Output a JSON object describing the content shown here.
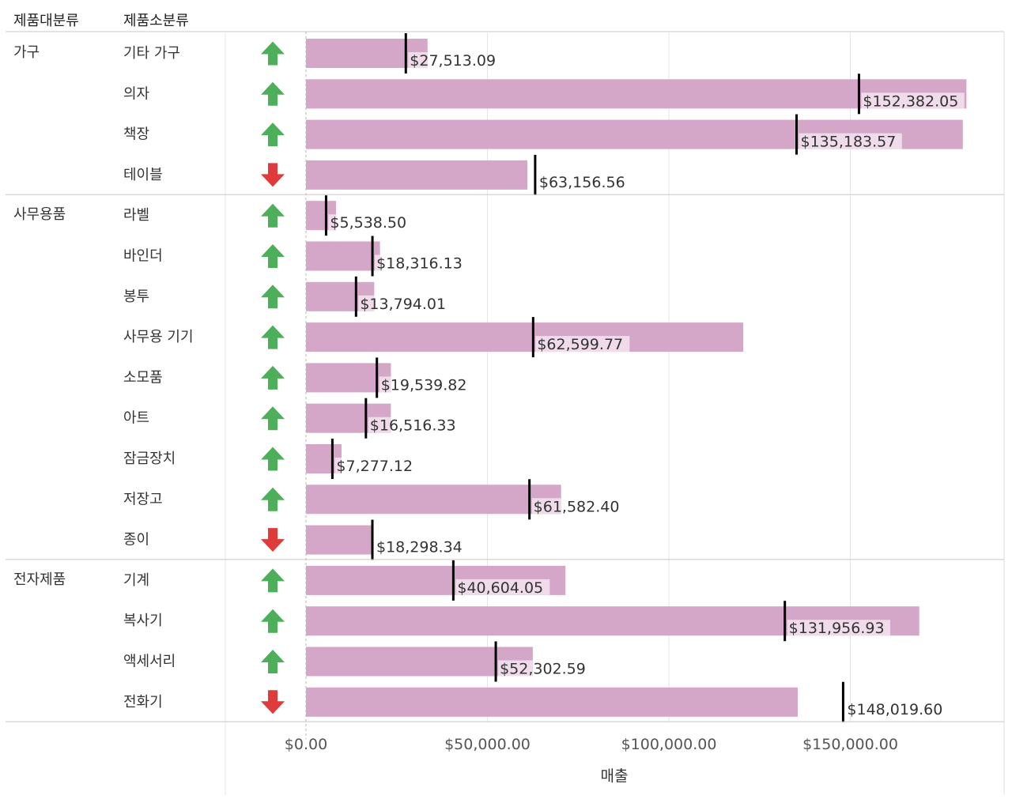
{
  "headers": {
    "category": "제품대분류",
    "subcategory": "제품소분류"
  },
  "colors": {
    "bar": "#d4a6c8",
    "label_bg": "#efdbe9",
    "target": "#000000",
    "up": "#4daf5a",
    "down": "#e03b3b",
    "grid": "#e6e6e6",
    "divider": "#c8c8c8"
  },
  "chart_data": {
    "type": "bar",
    "xlabel": "매출",
    "xlim": [
      0,
      190000
    ],
    "x_ticks": [
      {
        "value": 0,
        "label": "$0.00"
      },
      {
        "value": 50000,
        "label": "$50,000.00"
      },
      {
        "value": 100000,
        "label": "$100,000.00"
      },
      {
        "value": 150000,
        "label": "$150,000.00"
      }
    ],
    "groups": [
      {
        "category": "가구",
        "rows": [
          {
            "sub": "기타 가구",
            "value": 33500,
            "target": 27513.09,
            "target_label": "$27,513.09",
            "trend": "up"
          },
          {
            "sub": "의자",
            "value": 182000,
            "target": 152382.05,
            "target_label": "$152,382.05",
            "trend": "up"
          },
          {
            "sub": "책장",
            "value": 181000,
            "target": 135183.57,
            "target_label": "$135,183.57",
            "trend": "up"
          },
          {
            "sub": "테이블",
            "value": 61000,
            "target": 63156.56,
            "target_label": "$63,156.56",
            "trend": "down"
          }
        ]
      },
      {
        "category": "사무용품",
        "rows": [
          {
            "sub": "라벨",
            "value": 8300,
            "target": 5538.5,
            "target_label": "$5,538.50",
            "trend": "up"
          },
          {
            "sub": "바인더",
            "value": 20400,
            "target": 18316.13,
            "target_label": "$18,316.13",
            "trend": "up"
          },
          {
            "sub": "봉투",
            "value": 18800,
            "target": 13794.01,
            "target_label": "$13,794.01",
            "trend": "up"
          },
          {
            "sub": "사무용 기기",
            "value": 120500,
            "target": 62599.77,
            "target_label": "$62,599.77",
            "trend": "up"
          },
          {
            "sub": "소모품",
            "value": 23400,
            "target": 19539.82,
            "target_label": "$19,539.82",
            "trend": "up"
          },
          {
            "sub": "아트",
            "value": 23400,
            "target": 16516.33,
            "target_label": "$16,516.33",
            "trend": "up"
          },
          {
            "sub": "잠금장치",
            "value": 9800,
            "target": 7277.12,
            "target_label": "$7,277.12",
            "trend": "up"
          },
          {
            "sub": "저장고",
            "value": 70300,
            "target": 61582.4,
            "target_label": "$61,582.40",
            "trend": "up"
          },
          {
            "sub": "종이",
            "value": 18000,
            "target": 18298.34,
            "target_label": "$18,298.34",
            "trend": "down"
          }
        ]
      },
      {
        "category": "전자제품",
        "rows": [
          {
            "sub": "기계",
            "value": 71500,
            "target": 40604.05,
            "target_label": "$40,604.05",
            "trend": "up"
          },
          {
            "sub": "복사기",
            "value": 169000,
            "target": 131956.93,
            "target_label": "$131,956.93",
            "trend": "up"
          },
          {
            "sub": "액세서리",
            "value": 62500,
            "target": 52302.59,
            "target_label": "$52,302.59",
            "trend": "up"
          },
          {
            "sub": "전화기",
            "value": 135500,
            "target": 148019.6,
            "target_label": "$148,019.60",
            "trend": "down"
          }
        ]
      }
    ]
  }
}
